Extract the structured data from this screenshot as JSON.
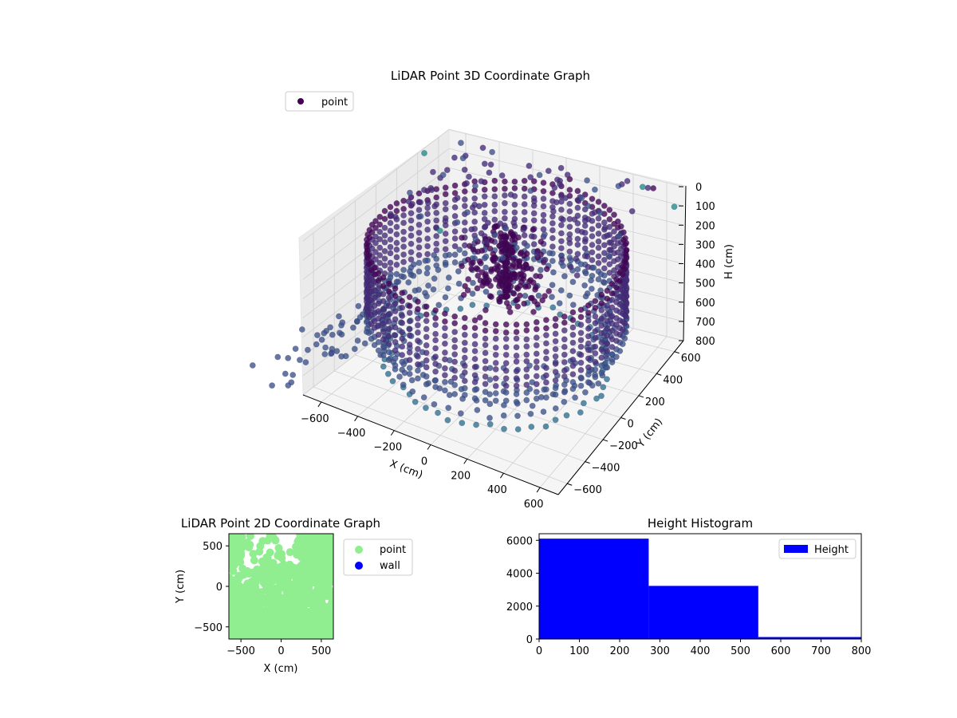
{
  "chart_data": [
    {
      "type": "scatter",
      "projection": "3d",
      "title": "LiDAR Point 3D Coordinate Graph",
      "xlabel": "X (cm)",
      "ylabel": "Y (cm)",
      "zlabel": "H (cm)",
      "xlim": [
        -700,
        700
      ],
      "ylim": [
        -700,
        700
      ],
      "zlim": [
        0,
        800
      ],
      "z_inverted": true,
      "xticks": [
        "−600",
        "−400",
        "−200",
        "0",
        "200",
        "400",
        "600"
      ],
      "yticks": [
        "−600",
        "−400",
        "−200",
        "0",
        "200",
        "400",
        "600"
      ],
      "zticks": [
        "0",
        "100",
        "200",
        "300",
        "400",
        "500",
        "600",
        "700",
        "800"
      ],
      "legend": {
        "position": "top-left",
        "entries": [
          "point"
        ]
      },
      "series": [
        {
          "name": "point",
          "colormap": "viridis",
          "color": "#440154"
        }
      ],
      "structure": {
        "outer_ring": {
          "radius": 650,
          "h_min": 120,
          "h_max": 520
        },
        "inner_ring": {
          "radius": 560,
          "h_min": 420,
          "h_max": 720
        },
        "central_cluster": {
          "center": [
            0,
            0
          ],
          "h_min": 100,
          "h_max": 420
        }
      },
      "grid": true
    },
    {
      "type": "scatter",
      "title": "LiDAR Point 2D Coordinate Graph",
      "xlabel": "X (cm)",
      "ylabel": "Y (cm)",
      "xlim": [
        -650,
        650
      ],
      "ylim": [
        -650,
        650
      ],
      "xticks": [
        "−500",
        "0",
        "500"
      ],
      "yticks": [
        "−500",
        "0",
        "500"
      ],
      "legend": {
        "position": "outside-right",
        "entries": [
          "point",
          "wall"
        ]
      },
      "series": [
        {
          "name": "point",
          "color": "#90ee90"
        },
        {
          "name": "wall",
          "color": "#0000ff"
        }
      ]
    },
    {
      "type": "bar",
      "title": "Height Histogram",
      "categories": [
        "0–272",
        "272–544",
        "544–816"
      ],
      "bins": [
        [
          0,
          272
        ],
        [
          272,
          544
        ],
        [
          544,
          816
        ]
      ],
      "values": [
        6100,
        3230,
        120
      ],
      "xlim": [
        0,
        800
      ],
      "ylim": [
        0,
        6400
      ],
      "xticks": [
        "0",
        "100",
        "200",
        "300",
        "400",
        "500",
        "600",
        "700",
        "800"
      ],
      "yticks": [
        "0",
        "2000",
        "4000",
        "6000"
      ],
      "legend": {
        "position": "top-right",
        "entries": [
          "Height"
        ]
      },
      "series": [
        {
          "name": "Height",
          "color": "#0000ff"
        }
      ]
    }
  ]
}
